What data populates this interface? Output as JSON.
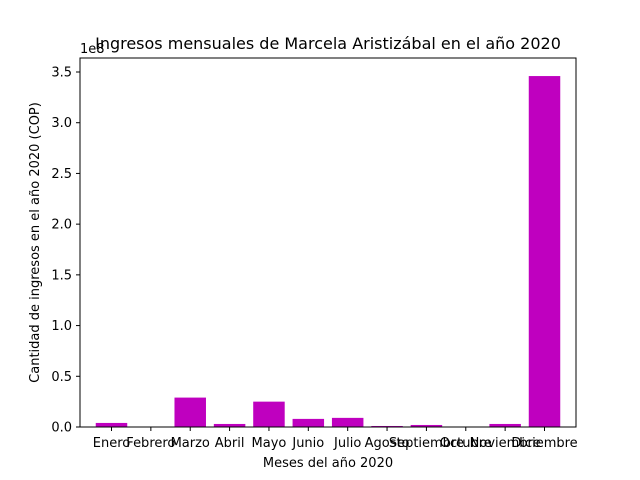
{
  "chart_data": {
    "type": "bar",
    "title": "Ingresos mensuales de Marcela Aristizábal en el año 2020",
    "xlabel": "Meses del año 2020",
    "ylabel": "Cantidad de ingresos en el año 2020 (COP)",
    "scale_label": "1e8",
    "categories": [
      "Enero",
      "Febrero",
      "Marzo",
      "Abril",
      "Mayo",
      "Junio",
      "Julio",
      "Agosto",
      "Septiembre",
      "Octubre",
      "Noviembre",
      "Diciembre"
    ],
    "values": [
      4000000,
      0,
      29000000,
      3000000,
      25000000,
      8000000,
      9000000,
      1000000,
      2000000,
      0,
      3000000,
      346000000
    ],
    "yticks": [
      0,
      50000000,
      100000000,
      150000000,
      200000000,
      250000000,
      300000000,
      350000000
    ],
    "ytick_labels": [
      "0.0",
      "0.5",
      "1.0",
      "1.5",
      "2.0",
      "2.5",
      "3.0",
      "3.5"
    ],
    "ylim": [
      0,
      350000000
    ],
    "bar_color": "#bf00bf",
    "grid": false,
    "legend": "none"
  }
}
